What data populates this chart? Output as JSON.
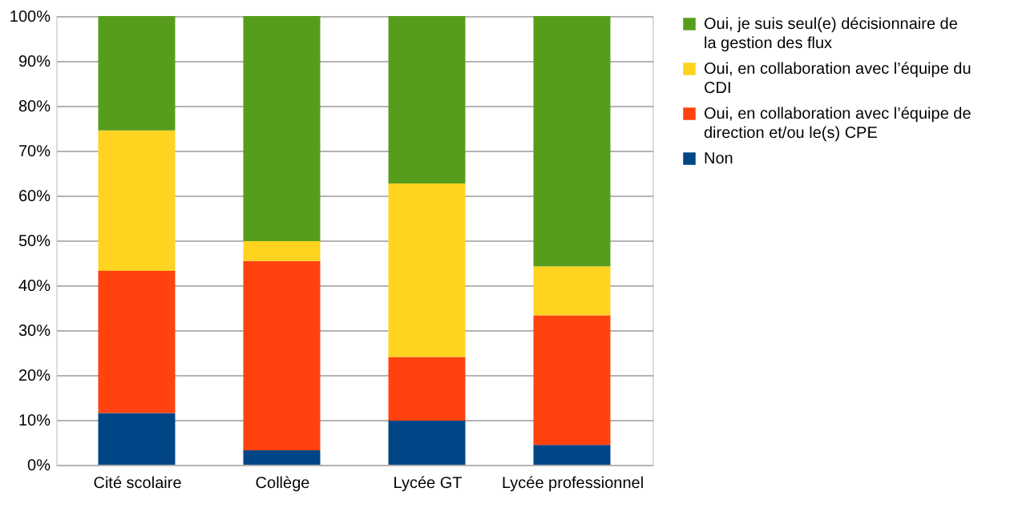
{
  "chart_data": {
    "type": "bar",
    "stacked": true,
    "categories": [
      "Cité scolaire",
      "Collège",
      "Lycée GT",
      "Lycée professionnel"
    ],
    "series": [
      {
        "name": "Non",
        "color": "#004586",
        "values": [
          11.5,
          3.2,
          9.8,
          4.4
        ]
      },
      {
        "name": "Oui, en collaboration avec l’équipe de direction et/ou le(s) CPE",
        "color": "#ff420e",
        "values": [
          31.7,
          42.2,
          14.2,
          28.9
        ]
      },
      {
        "name": "Oui, en collaboration avec l’équipe du CDI",
        "color": "#ffd320",
        "values": [
          31.3,
          4.4,
          38.7,
          10.9
        ]
      },
      {
        "name": "Oui, je suis seul(e) décisionnaire de la gestion des flux",
        "color": "#579d1c",
        "values": [
          25.5,
          50.2,
          37.3,
          55.8
        ]
      }
    ],
    "ylim": [
      0,
      100
    ],
    "yticks": [
      {
        "value": 0,
        "label": "0%"
      },
      {
        "value": 10,
        "label": "10%"
      },
      {
        "value": 20,
        "label": "20%"
      },
      {
        "value": 30,
        "label": "30%"
      },
      {
        "value": 40,
        "label": "40%"
      },
      {
        "value": 50,
        "label": "50%"
      },
      {
        "value": 60,
        "label": "60%"
      },
      {
        "value": 70,
        "label": "70%"
      },
      {
        "value": 80,
        "label": "80%"
      },
      {
        "value": 90,
        "label": "90%"
      },
      {
        "value": 100,
        "label": "100%"
      }
    ],
    "grid": "y",
    "legend": "right"
  }
}
